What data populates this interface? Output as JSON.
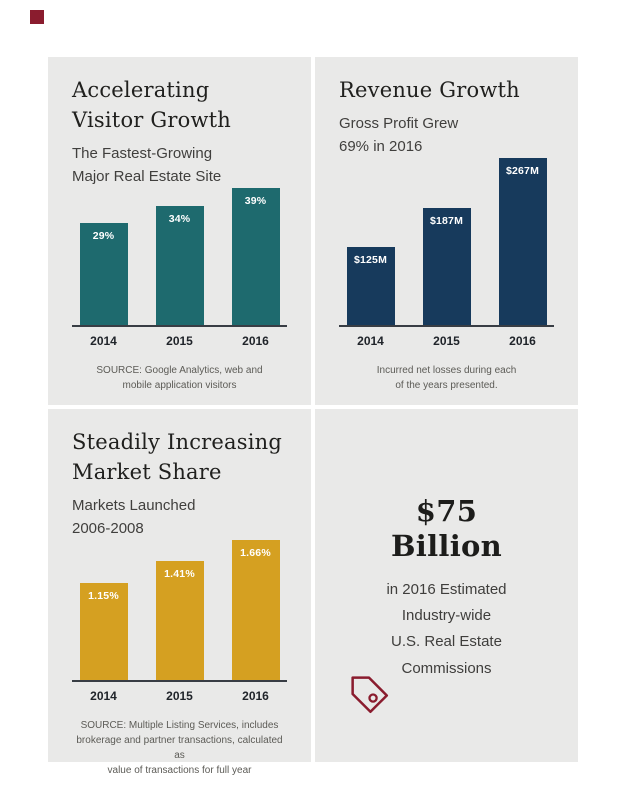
{
  "page": {
    "background": "#ffffff",
    "panel_bg": "#e9e9e8",
    "logo_color": "#8a1c2e"
  },
  "chart_data": [
    {
      "type": "bar",
      "title_lines": [
        "Accelerating",
        "Visitor Growth"
      ],
      "subtitle_lines": [
        "The Fastest-Growing",
        "Major Real Estate Site"
      ],
      "categories": [
        "2014",
        "2015",
        "2016"
      ],
      "values": [
        29,
        34,
        39
      ],
      "value_labels": [
        "29%",
        "34%",
        "39%"
      ],
      "ylim": [
        0,
        39
      ],
      "bar_color": "#1e6a6e",
      "source_lines": [
        "SOURCE: Google Analytics, web and",
        "mobile application visitors"
      ]
    },
    {
      "type": "bar",
      "title_lines": [
        "Revenue Growth"
      ],
      "subtitle_lines": [
        "Gross Profit Grew",
        "69% in 2016"
      ],
      "categories": [
        "2014",
        "2015",
        "2016"
      ],
      "values": [
        125,
        187,
        267
      ],
      "value_labels": [
        "$125M",
        "$187M",
        "$267M"
      ],
      "ylim": [
        0,
        267
      ],
      "bar_color": "#173a5c",
      "source_lines": [
        "Incurred net losses during each",
        "of the years presented."
      ]
    },
    {
      "type": "bar",
      "title_lines": [
        "Steadily Increasing",
        "Market Share"
      ],
      "subtitle_lines": [
        "Markets Launched",
        "2006-2008"
      ],
      "categories": [
        "2014",
        "2015",
        "2016"
      ],
      "values": [
        1.15,
        1.41,
        1.66
      ],
      "value_labels": [
        "1.15%",
        "1.41%",
        "1.66%"
      ],
      "ylim": [
        0,
        1.66
      ],
      "bar_color": "#d5a021",
      "source_lines": [
        "SOURCE: Multiple Listing Services, includes",
        "brokerage and partner transactions, calculated as",
        "value of transactions for full year"
      ]
    }
  ],
  "stat": {
    "value_lines": [
      "$75",
      "Billion"
    ],
    "desc_lines": [
      "in 2016 Estimated",
      "Industry-wide",
      "U.S. Real Estate",
      "Commissions"
    ],
    "tag_icon_color": "#8a1c2e"
  }
}
